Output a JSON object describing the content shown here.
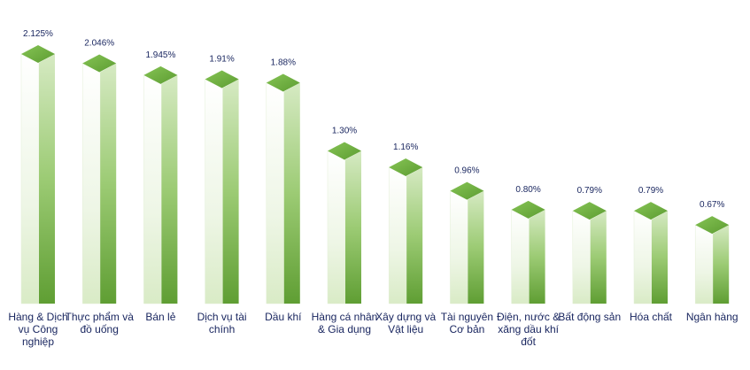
{
  "chart_data": {
    "type": "bar",
    "title": "",
    "xlabel": "",
    "ylabel": "",
    "categories": [
      "Hàng & Dịch vụ Công nghiệp",
      "Thực phẩm và đồ uống",
      "Bán lẻ",
      "Dịch vụ tài chính",
      "Dầu khí",
      "Hàng cá nhân & Gia dụng",
      "Xây dựng và Vật liệu",
      "Tài nguyên Cơ bản",
      "Điện, nước & xăng dầu khí đốt",
      "Bất động sản",
      "Hóa chất",
      "Ngân hàng"
    ],
    "values": [
      2.125,
      2.046,
      1.945,
      1.91,
      1.88,
      1.3,
      1.16,
      0.96,
      0.8,
      0.79,
      0.79,
      0.67
    ],
    "value_labels": [
      "2.125%",
      "2.046%",
      "1.945%",
      "1.91%",
      "1.88%",
      "1.30%",
      "1.16%",
      "0.96%",
      "0.80%",
      "0.79%",
      "0.79%",
      "0.67%"
    ],
    "ylim": [
      0,
      2.3
    ],
    "grid": false,
    "legend": "none",
    "colors": {
      "bar_light": "#f3f9ec",
      "bar_dark": "#6aab3c",
      "top_face": "#6db03f",
      "label_text": "#17245e"
    }
  }
}
